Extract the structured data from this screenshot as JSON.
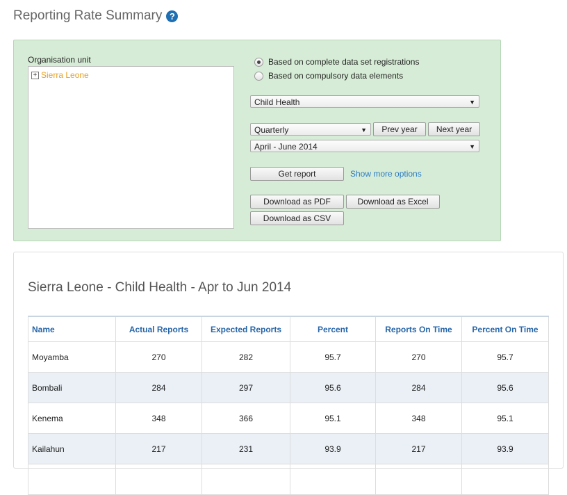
{
  "page": {
    "title": "Reporting Rate Summary",
    "help_icon": "?"
  },
  "criteria": {
    "org_unit_label": "Organisation unit",
    "tree_root": {
      "expand": "+",
      "label": "Sierra Leone"
    },
    "radio_complete": "Based on complete data set registrations",
    "radio_compulsory": "Based on compulsory data elements",
    "dataset_selected": "Child Health",
    "period_type_selected": "Quarterly",
    "prev_year": "Prev year",
    "next_year": "Next year",
    "period_selected": "April - June 2014",
    "get_report": "Get report",
    "show_more": "Show more options",
    "download_pdf": "Download as PDF",
    "download_excel": "Download as Excel",
    "download_csv": "Download as CSV",
    "caret": "▼"
  },
  "report": {
    "title": "Sierra Leone - Child Health - Apr to Jun 2014",
    "columns": [
      "Name",
      "Actual Reports",
      "Expected Reports",
      "Percent",
      "Reports On Time",
      "Percent On Time"
    ],
    "rows": [
      [
        "Moyamba",
        "270",
        "282",
        "95.7",
        "270",
        "95.7"
      ],
      [
        "Bombali",
        "284",
        "297",
        "95.6",
        "284",
        "95.6"
      ],
      [
        "Kenema",
        "348",
        "366",
        "95.1",
        "348",
        "95.1"
      ],
      [
        "Kailahun",
        "217",
        "231",
        "93.9",
        "217",
        "93.9"
      ],
      [
        "",
        "",
        "",
        "",
        "",
        ""
      ]
    ]
  },
  "colors": {
    "panel_bg": "#d6ecd6",
    "header_text": "#2866a8",
    "tree_label": "#e8a023",
    "link": "#2b7bc4"
  }
}
